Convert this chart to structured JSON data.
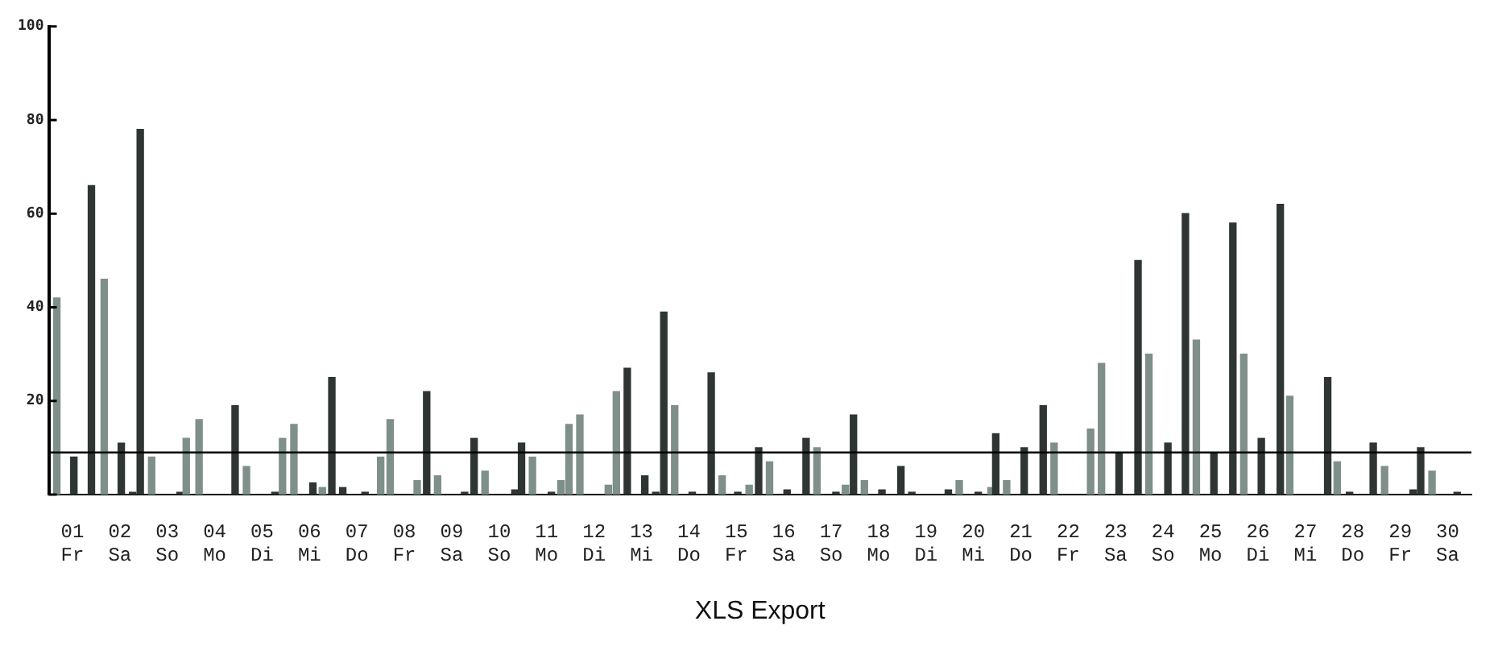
{
  "chart_data": {
    "type": "bar",
    "xlabel": "XLS Export",
    "x": [
      0.17,
      0.53,
      0.9,
      1.17,
      1.53,
      1.77,
      1.93,
      2.17,
      2.77,
      2.9,
      3.17,
      3.93,
      4.17,
      4.77,
      4.93,
      5.17,
      5.57,
      5.77,
      5.97,
      6.2,
      6.67,
      7,
      7.2,
      7.77,
      7.97,
      8.2,
      8.77,
      8.97,
      9.2,
      9.83,
      9.97,
      10.2,
      10.6,
      10.8,
      10.97,
      11.2,
      11.8,
      11.97,
      12.2,
      12.57,
      12.8,
      12.97,
      13.2,
      13.57,
      13.97,
      14.2,
      14.53,
      14.77,
      14.97,
      15.2,
      15.57,
      15.97,
      16.2,
      16.6,
      16.8,
      16.97,
      17.2,
      17.57,
      17.97,
      18.2,
      18.97,
      19.2,
      19.6,
      19.87,
      19.97,
      20.2,
      20.57,
      20.97,
      21.2,
      21.97,
      22.2,
      22.57,
      22.97,
      23.2,
      23.6,
      23.97,
      24.2,
      24.57,
      24.97,
      25.2,
      25.57,
      25.97,
      26.17,
      26.97,
      27.17,
      27.43,
      27.93,
      28.17,
      28.77,
      28.93,
      29.17,
      29.7
    ],
    "values": [
      42,
      8,
      66,
      46,
      11,
      0.5,
      78,
      8,
      0.5,
      12,
      16,
      19,
      6,
      0.5,
      12,
      15,
      2.5,
      1.5,
      25,
      1.5,
      0.5,
      8,
      16,
      3,
      22,
      4,
      0.5,
      12,
      5,
      1,
      11,
      8,
      0.5,
      3,
      15,
      17,
      2,
      22,
      27,
      4,
      0.5,
      39,
      19,
      0.5,
      26,
      4,
      0.5,
      2,
      10,
      7,
      1,
      12,
      10,
      0.5,
      2,
      17,
      3,
      1,
      6,
      0.5,
      1,
      3,
      0.5,
      1.5,
      13,
      3,
      10,
      19,
      11,
      14,
      28,
      9,
      50,
      30,
      11,
      60,
      33,
      9,
      58,
      30,
      12,
      62,
      21,
      25,
      7,
      0.5,
      11,
      6,
      1,
      10,
      5,
      0.5
    ],
    "colors": [
      "#7f8f8a",
      "#2e3532",
      "#2e3532",
      "#7f8f8a",
      "#2e3532",
      "#2e3532",
      "#2e3532",
      "#7f8f8a",
      "#2e3532",
      "#7f8f8a",
      "#7f8f8a",
      "#2e3532",
      "#7f8f8a",
      "#2e3532",
      "#7f8f8a",
      "#7f8f8a",
      "#2e3532",
      "#7f8f8a",
      "#2e3532",
      "#2e3532",
      "#2e3532",
      "#7f8f8a",
      "#7f8f8a",
      "#7f8f8a",
      "#2e3532",
      "#7f8f8a",
      "#2e3532",
      "#2e3532",
      "#7f8f8a",
      "#2e3532",
      "#2e3532",
      "#7f8f8a",
      "#2e3532",
      "#7f8f8a",
      "#7f8f8a",
      "#7f8f8a",
      "#7f8f8a",
      "#7f8f8a",
      "#2e3532",
      "#2e3532",
      "#2e3532",
      "#2e3532",
      "#7f8f8a",
      "#2e3532",
      "#2e3532",
      "#7f8f8a",
      "#2e3532",
      "#7f8f8a",
      "#2e3532",
      "#7f8f8a",
      "#2e3532",
      "#2e3532",
      "#7f8f8a",
      "#2e3532",
      "#7f8f8a",
      "#2e3532",
      "#7f8f8a",
      "#2e3532",
      "#2e3532",
      "#2e3532",
      "#2e3532",
      "#7f8f8a",
      "#2e3532",
      "#7f8f8a",
      "#2e3532",
      "#7f8f8a",
      "#2e3532",
      "#2e3532",
      "#7f8f8a",
      "#7f8f8a",
      "#7f8f8a",
      "#2e3532",
      "#2e3532",
      "#7f8f8a",
      "#2e3532",
      "#2e3532",
      "#7f8f8a",
      "#2e3532",
      "#2e3532",
      "#7f8f8a",
      "#2e3532",
      "#2e3532",
      "#7f8f8a",
      "#2e3532",
      "#7f8f8a",
      "#2e3532",
      "#2e3532",
      "#7f8f8a",
      "#2e3532",
      "#2e3532",
      "#7f8f8a",
      "#2e3532"
    ],
    "xlim": [
      0,
      30
    ],
    "xticks": [
      {
        "value": 0.5,
        "label": "01 Fr"
      },
      {
        "value": 1.5,
        "label": "02 Sa"
      },
      {
        "value": 2.5,
        "label": "03 So"
      },
      {
        "value": 3.5,
        "label": "04 Mo"
      },
      {
        "value": 4.5,
        "label": "05 Di"
      },
      {
        "value": 5.5,
        "label": "06 Mi"
      },
      {
        "value": 6.5,
        "label": "07 Do"
      },
      {
        "value": 7.5,
        "label": "08 Fr"
      },
      {
        "value": 8.5,
        "label": "09 Sa"
      },
      {
        "value": 9.5,
        "label": "10 So"
      },
      {
        "value": 10.5,
        "label": "11 Mo"
      },
      {
        "value": 11.5,
        "label": "12 Di"
      },
      {
        "value": 12.5,
        "label": "13 Mi"
      },
      {
        "value": 13.5,
        "label": "14 Do"
      },
      {
        "value": 14.5,
        "label": "15 Fr"
      },
      {
        "value": 15.5,
        "label": "16 Sa"
      },
      {
        "value": 16.5,
        "label": "17 So"
      },
      {
        "value": 17.5,
        "label": "18 Mo"
      },
      {
        "value": 18.5,
        "label": "19 Di"
      },
      {
        "value": 19.5,
        "label": "20 Mi"
      },
      {
        "value": 20.5,
        "label": "21 Do"
      },
      {
        "value": 21.5,
        "label": "22 Fr"
      },
      {
        "value": 22.5,
        "label": "23 Sa"
      },
      {
        "value": 23.5,
        "label": "24 So"
      },
      {
        "value": 24.5,
        "label": "25 Mo"
      },
      {
        "value": 25.5,
        "label": "26 Di"
      },
      {
        "value": 26.5,
        "label": "27 Mi"
      },
      {
        "value": 27.5,
        "label": "28 Do"
      },
      {
        "value": 28.5,
        "label": "29 Fr"
      },
      {
        "value": 29.5,
        "label": "30 Sa"
      }
    ],
    "ylim": [
      0,
      100
    ],
    "yticks": [
      {
        "value": 0,
        "label": null
      },
      20,
      40,
      60,
      80,
      100
    ],
    "ref_lines": [
      {
        "axis": "y",
        "value": 9,
        "color": "#000000"
      }
    ],
    "grid": false,
    "legend": false
  }
}
